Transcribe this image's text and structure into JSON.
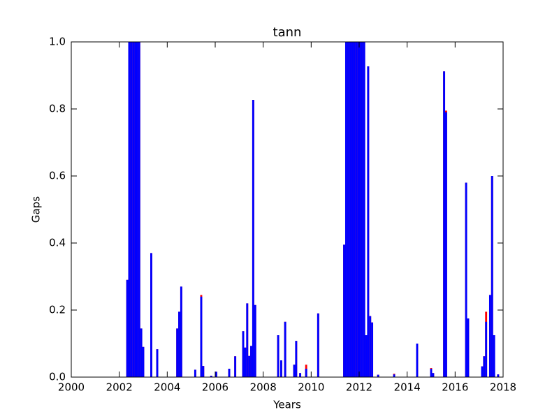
{
  "chart_data": {
    "type": "bar",
    "title": "tann",
    "x_label": "Years",
    "y_label": "Gaps",
    "x": [
      2002.292,
      2002.375,
      2002.458,
      2002.542,
      2002.625,
      2002.708,
      2002.792,
      2002.875,
      2002.958,
      2003.292,
      2003.542,
      2004.375,
      2004.458,
      2004.542,
      2005.125,
      2005.375,
      2005.458,
      2005.792,
      2006.0,
      2006.542,
      2006.792,
      2007.125,
      2007.208,
      2007.292,
      2007.375,
      2007.458,
      2007.542,
      2007.625,
      2008.583,
      2008.708,
      2008.875,
      2009.25,
      2009.333,
      2009.5,
      2009.75,
      2010.25,
      2011.333,
      2011.417,
      2011.5,
      2011.583,
      2011.667,
      2011.75,
      2011.833,
      2011.917,
      2012.0,
      2012.083,
      2012.167,
      2012.25,
      2012.333,
      2012.417,
      2012.5,
      2012.75,
      2013.417,
      2014.375,
      2014.958,
      2015.042,
      2015.5,
      2015.583,
      2016.417,
      2016.5,
      2017.083,
      2017.167,
      2017.25,
      2017.417,
      2017.5,
      2017.583,
      2017.75
    ],
    "series": [
      {
        "color": "#ff0000",
        "values": [
          0.29,
          1,
          1,
          1,
          1,
          1,
          1,
          0.145,
          0.09,
          0.37,
          0.083,
          0.145,
          0.195,
          0.27,
          0.022,
          0.245,
          0.033,
          0.004,
          0.016,
          0.025,
          0.062,
          0.137,
          0.088,
          0.22,
          0.063,
          0.093,
          0.827,
          0.215,
          0.125,
          0.05,
          0.165,
          0.037,
          0.108,
          0.012,
          0.037,
          0.19,
          0.395,
          1,
          1,
          1,
          1,
          1,
          1,
          1,
          1,
          1,
          1,
          0.125,
          0.927,
          0.182,
          0.163,
          0.007,
          0.01,
          0.1,
          0.027,
          0.012,
          0.912,
          0.795,
          0.58,
          0.175,
          0.032,
          0.062,
          0.195,
          0.245,
          0.6,
          0.125,
          0.008
        ]
      },
      {
        "color": "#0000ff",
        "values": [
          0.29,
          1,
          1,
          1,
          1,
          1,
          1,
          0.145,
          0.09,
          0.37,
          0.083,
          0.145,
          0.195,
          0.27,
          0.022,
          0.24,
          0.033,
          0.004,
          0.016,
          0.025,
          0.062,
          0.137,
          0.088,
          0.22,
          0.063,
          0.093,
          0.827,
          0.215,
          0.125,
          0.05,
          0.165,
          0.037,
          0.108,
          0.012,
          0.025,
          0.19,
          0.395,
          1,
          1,
          1,
          1,
          1,
          1,
          1,
          1,
          1,
          1,
          0.125,
          0.927,
          0.182,
          0.163,
          0.007,
          0.008,
          0.1,
          0.025,
          0.012,
          0.912,
          0.79,
          0.58,
          0.175,
          0.032,
          0.062,
          0.165,
          0.245,
          0.6,
          0.125,
          0.008
        ]
      }
    ],
    "xlim": [
      2000,
      2018
    ],
    "xticks": [
      2000,
      2002,
      2004,
      2006,
      2008,
      2010,
      2012,
      2014,
      2016,
      2018
    ],
    "ylim": [
      0,
      1
    ],
    "yticks": [
      {
        "value": 0,
        "label": "0.0"
      },
      {
        "value": 0.2,
        "label": "0.2"
      },
      {
        "value": 0.4,
        "label": "0.4"
      },
      {
        "value": 0.6,
        "label": "0.6"
      },
      {
        "value": 0.8,
        "label": "0.8"
      },
      {
        "value": 1,
        "label": "1.0"
      }
    ]
  }
}
